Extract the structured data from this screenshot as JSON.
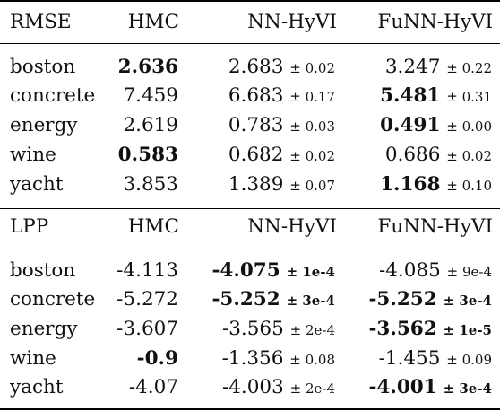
{
  "sections": [
    {
      "header": [
        "RMSE",
        "HMC",
        "NN-HyVI",
        "FuNN-HyVI"
      ],
      "rows": [
        {
          "name": "boston",
          "hmc": "2.636",
          "hmc_bold": true,
          "nn": "2.683",
          "nn_sd": "± 0.02",
          "nn_bold": false,
          "nn_sd_bold": false,
          "fu": "3.247",
          "fu_sd": "± 0.22",
          "fu_bold": false,
          "fu_sd_bold": false
        },
        {
          "name": "concrete",
          "hmc": "7.459",
          "hmc_bold": false,
          "nn": "6.683",
          "nn_sd": "± 0.17",
          "nn_bold": false,
          "nn_sd_bold": false,
          "fu": "5.481",
          "fu_sd": "± 0.31",
          "fu_bold": true,
          "fu_sd_bold": false
        },
        {
          "name": "energy",
          "hmc": "2.619",
          "hmc_bold": false,
          "nn": "0.783",
          "nn_sd": "± 0.03",
          "nn_bold": false,
          "nn_sd_bold": false,
          "fu": "0.491",
          "fu_sd": "± 0.00",
          "fu_bold": true,
          "fu_sd_bold": false
        },
        {
          "name": "wine",
          "hmc": "0.583",
          "hmc_bold": true,
          "nn": "0.682",
          "nn_sd": "± 0.02",
          "nn_bold": false,
          "nn_sd_bold": false,
          "fu": "0.686",
          "fu_sd": "± 0.02",
          "fu_bold": false,
          "fu_sd_bold": false
        },
        {
          "name": "yacht",
          "hmc": "3.853",
          "hmc_bold": false,
          "nn": "1.389",
          "nn_sd": "± 0.07",
          "nn_bold": false,
          "nn_sd_bold": false,
          "fu": "1.168",
          "fu_sd": "± 0.10",
          "fu_bold": true,
          "fu_sd_bold": false
        }
      ]
    },
    {
      "header": [
        "LPP",
        "HMC",
        "NN-HyVI",
        "FuNN-HyVI"
      ],
      "rows": [
        {
          "name": "boston",
          "hmc": "-4.113",
          "hmc_bold": false,
          "nn": "-4.075",
          "nn_sd": "± 1e-4",
          "nn_bold": true,
          "nn_sd_bold": true,
          "fu": "-4.085",
          "fu_sd": "± 9e-4",
          "fu_bold": false,
          "fu_sd_bold": false
        },
        {
          "name": "concrete",
          "hmc": "-5.272",
          "hmc_bold": false,
          "nn": "-5.252",
          "nn_sd": "± 3e-4",
          "nn_bold": true,
          "nn_sd_bold": true,
          "fu": "-5.252",
          "fu_sd": "± 3e-4",
          "fu_bold": true,
          "fu_sd_bold": true
        },
        {
          "name": "energy",
          "hmc": "-3.607",
          "hmc_bold": false,
          "nn": "-3.565",
          "nn_sd": "± 2e-4",
          "nn_bold": false,
          "nn_sd_bold": false,
          "fu": "-3.562",
          "fu_sd": "± 1e-5",
          "fu_bold": true,
          "fu_sd_bold": true
        },
        {
          "name": "wine",
          "hmc": "-0.9",
          "hmc_bold": true,
          "nn": "-1.356",
          "nn_sd": "± 0.08",
          "nn_bold": false,
          "nn_sd_bold": false,
          "fu": "-1.455",
          "fu_sd": "± 0.09",
          "fu_bold": false,
          "fu_sd_bold": false
        },
        {
          "name": "yacht",
          "hmc": "-4.07",
          "hmc_bold": false,
          "nn": "-4.003",
          "nn_sd": "± 2e-4",
          "nn_bold": false,
          "nn_sd_bold": false,
          "fu": "-4.001",
          "fu_sd": "± 3e-4",
          "fu_bold": true,
          "fu_sd_bold": true
        }
      ]
    }
  ]
}
